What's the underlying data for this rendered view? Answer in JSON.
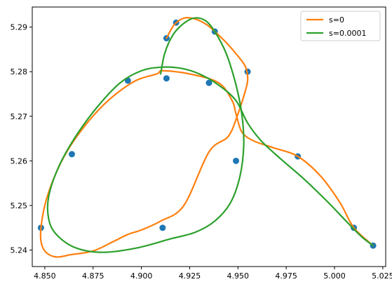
{
  "chart_data": {
    "type": "line",
    "xlim": [
      4.8435,
      5.0265
    ],
    "ylim": [
      5.2363,
      5.2945
    ],
    "xticks": [
      {
        "value": 4.85,
        "label": "4.850"
      },
      {
        "value": 4.875,
        "label": "4.875"
      },
      {
        "value": 4.9,
        "label": "4.900"
      },
      {
        "value": 4.925,
        "label": "4.925"
      },
      {
        "value": 4.95,
        "label": "4.950"
      },
      {
        "value": 4.975,
        "label": "4.975"
      },
      {
        "value": 5.0,
        "label": "5.000"
      },
      {
        "value": 5.025,
        "label": "5.025"
      }
    ],
    "yticks": [
      {
        "value": 5.24,
        "label": "5.24"
      },
      {
        "value": 5.25,
        "label": "5.25"
      },
      {
        "value": 5.26,
        "label": "5.26"
      },
      {
        "value": 5.27,
        "label": "5.27"
      },
      {
        "value": 5.28,
        "label": "5.28"
      },
      {
        "value": 5.29,
        "label": "5.29"
      }
    ],
    "grid": false,
    "legend_position": "top-right",
    "points": {
      "color": "#1f77b4",
      "x": [
        4.913,
        4.918,
        4.938,
        4.955,
        4.935,
        4.913,
        4.893,
        4.864,
        4.848,
        4.911,
        4.949,
        4.981,
        5.01,
        5.02
      ],
      "y": [
        5.2875,
        5.291,
        5.289,
        5.28,
        5.2775,
        5.2785,
        5.278,
        5.2615,
        5.245,
        5.245,
        5.26,
        5.261,
        5.245,
        5.241
      ]
    },
    "series": [
      {
        "name": "s=0",
        "color": "#ff7f0e",
        "x": [
          4.913,
          4.917,
          4.922,
          4.928,
          4.934,
          4.938,
          4.944,
          4.95,
          4.954,
          4.955,
          4.953,
          4.95,
          4.945,
          4.935,
          4.922,
          4.91,
          4.9,
          4.893,
          4.885,
          4.875,
          4.864,
          4.855,
          4.849,
          4.848,
          4.852,
          4.862,
          4.878,
          4.895,
          4.908,
          4.911,
          4.925,
          4.94,
          4.947,
          4.949,
          4.952,
          4.958,
          4.968,
          4.981,
          4.993,
          5.003,
          5.01,
          5.02
        ],
        "y": [
          5.2875,
          5.2905,
          5.292,
          5.2918,
          5.2905,
          5.289,
          5.2865,
          5.2835,
          5.281,
          5.278,
          5.2745,
          5.2705,
          5.2655,
          5.262,
          5.25,
          5.2465,
          5.2445,
          5.2435,
          5.2418,
          5.2398,
          5.239,
          5.2385,
          5.2405,
          5.245,
          5.253,
          5.2625,
          5.2715,
          5.2775,
          5.2795,
          5.2802,
          5.2795,
          5.2775,
          5.2735,
          5.2705,
          5.2665,
          5.2645,
          5.263,
          5.261,
          5.2565,
          5.2505,
          5.245,
          5.241
        ]
      },
      {
        "name": "s=0.0001",
        "color": "#2ca02c",
        "x": [
          4.91,
          4.912,
          4.916,
          4.921,
          4.927,
          4.933,
          4.938,
          4.944,
          4.949,
          4.952,
          4.953,
          4.951,
          4.946,
          4.938,
          4.928,
          4.915,
          4.898,
          4.88,
          4.866,
          4.856,
          4.852,
          4.852,
          4.857,
          4.866,
          4.877,
          4.889,
          4.9,
          4.91,
          4.92,
          4.93,
          4.94,
          4.949,
          4.955,
          4.962,
          4.972,
          4.984,
          4.996,
          5.006,
          5.014,
          5.02
        ],
        "y": [
          5.2795,
          5.284,
          5.288,
          5.2905,
          5.292,
          5.2915,
          5.289,
          5.284,
          5.277,
          5.2705,
          5.2635,
          5.2565,
          5.2505,
          5.2465,
          5.244,
          5.2425,
          5.2405,
          5.2395,
          5.2405,
          5.2435,
          5.247,
          5.252,
          5.2585,
          5.2655,
          5.272,
          5.2775,
          5.2802,
          5.281,
          5.2808,
          5.2795,
          5.277,
          5.2735,
          5.2685,
          5.2645,
          5.2605,
          5.256,
          5.251,
          5.2465,
          5.243,
          5.241
        ]
      }
    ]
  }
}
